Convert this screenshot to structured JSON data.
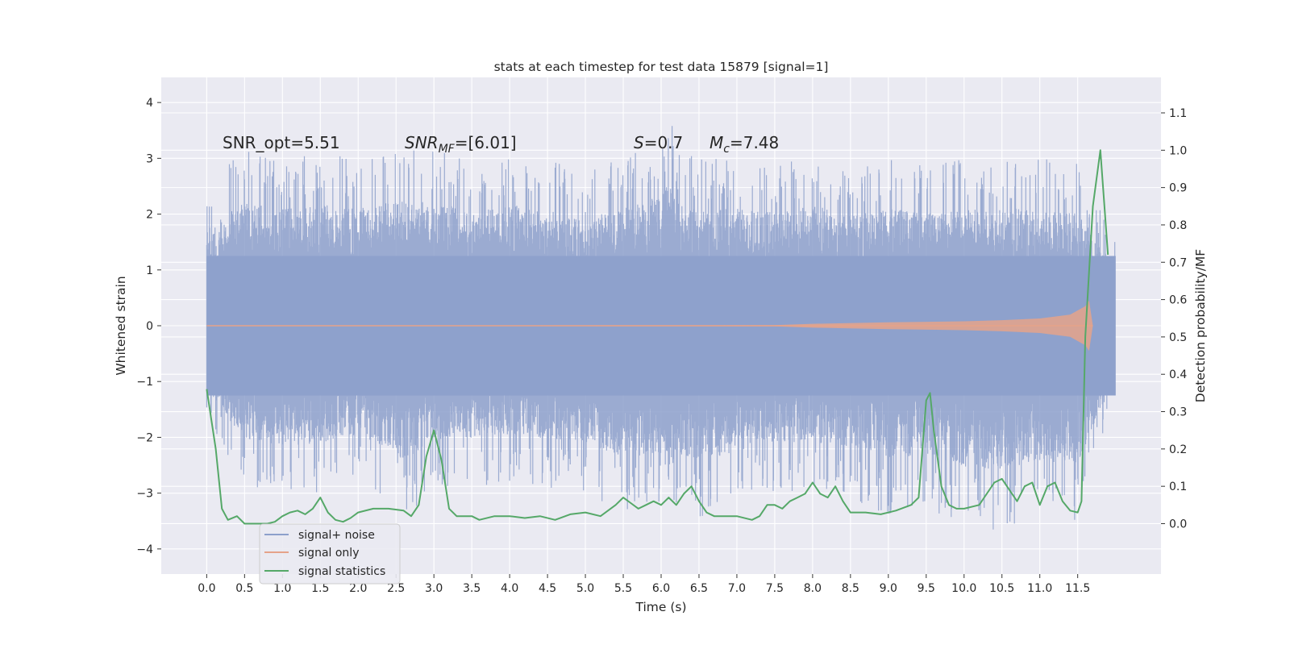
{
  "chart_data": {
    "type": "line",
    "title": "stats at each timestep for test data 15879 [signal=1]",
    "xlabel": "Time (s)",
    "ylabel_left": "Whitened strain",
    "ylabel_right": "Detection probability/MF",
    "xlim": [
      -0.6,
      12.6
    ],
    "ylim_left": [
      -4.45,
      4.45
    ],
    "ylim_right": [
      -0.135,
      1.195
    ],
    "x_ticks": [
      "0.0",
      "0.5",
      "1.0",
      "1.5",
      "2.0",
      "2.5",
      "3.0",
      "3.5",
      "4.0",
      "4.5",
      "5.0",
      "5.5",
      "6.0",
      "6.5",
      "7.0",
      "7.5",
      "8.0",
      "8.5",
      "9.0",
      "9.5",
      "10.0",
      "10.5",
      "11.0",
      "11.5"
    ],
    "y_ticks_left": [
      "4",
      "3",
      "2",
      "1",
      "0",
      "−1",
      "−2",
      "−3",
      "−4"
    ],
    "y_ticks_right": [
      "1.1",
      "1.0",
      "0.9",
      "0.8",
      "0.7",
      "0.6",
      "0.5",
      "0.4",
      "0.3",
      "0.2",
      "0.1",
      "0.0"
    ],
    "grid": true,
    "annotations": {
      "snr_opt": "SNR_opt=5.51",
      "snr_mf_main": "SNR",
      "snr_mf_sub": "MF",
      "snr_mf_rest": "=[6.01]",
      "s_symbol": "S",
      "s_value": "=0.7",
      "mc_symbol": "M",
      "mc_sub": "c",
      "mc_value": "=7.48"
    },
    "legend": {
      "placement": "lower-left",
      "items": [
        {
          "label": "signal+ noise",
          "color": "#8da0cb"
        },
        {
          "label": "signal only",
          "color": "#e5a38a"
        },
        {
          "label": "signal statistics",
          "color": "#55a868"
        }
      ]
    },
    "series": [
      {
        "name": "signal+ noise",
        "color": "#8da0cb",
        "x_range": [
          0.0,
          12.0
        ],
        "envelope_upper": [
          [
            0.0,
            2.5
          ],
          [
            0.5,
            3.2
          ],
          [
            1.0,
            3.0
          ],
          [
            1.5,
            3.1
          ],
          [
            2.0,
            3.0
          ],
          [
            2.5,
            3.2
          ],
          [
            3.0,
            3.2
          ],
          [
            3.5,
            2.9
          ],
          [
            4.0,
            3.1
          ],
          [
            4.5,
            3.0
          ],
          [
            5.0,
            2.7
          ],
          [
            5.5,
            3.1
          ],
          [
            6.0,
            3.3
          ],
          [
            6.1,
            4.05
          ],
          [
            6.2,
            3.2
          ],
          [
            6.5,
            3.0
          ],
          [
            7.0,
            3.0
          ],
          [
            7.5,
            2.9
          ],
          [
            8.0,
            3.1
          ],
          [
            8.5,
            2.8
          ],
          [
            9.0,
            3.0
          ],
          [
            9.5,
            2.9
          ],
          [
            10.0,
            3.0
          ],
          [
            10.5,
            3.0
          ],
          [
            11.0,
            3.0
          ],
          [
            11.5,
            2.9
          ],
          [
            12.0,
            1.5
          ]
        ],
        "envelope_lower": [
          [
            0.0,
            -1.7
          ],
          [
            0.5,
            -2.9
          ],
          [
            1.0,
            -3.1
          ],
          [
            1.5,
            -3.0
          ],
          [
            2.0,
            -2.8
          ],
          [
            2.5,
            -3.2
          ],
          [
            2.6,
            -3.5
          ],
          [
            3.0,
            -2.9
          ],
          [
            3.5,
            -2.9
          ],
          [
            4.0,
            -2.8
          ],
          [
            4.5,
            -2.9
          ],
          [
            5.0,
            -3.0
          ],
          [
            5.5,
            -3.4
          ],
          [
            6.0,
            -3.3
          ],
          [
            6.1,
            -4.05
          ],
          [
            6.2,
            -3.3
          ],
          [
            6.5,
            -3.5
          ],
          [
            7.0,
            -3.2
          ],
          [
            7.5,
            -3.0
          ],
          [
            8.0,
            -3.0
          ],
          [
            8.5,
            -3.1
          ],
          [
            9.0,
            -3.4
          ],
          [
            9.5,
            -3.3
          ],
          [
            10.0,
            -3.6
          ],
          [
            10.5,
            -3.7
          ],
          [
            11.0,
            -3.5
          ],
          [
            11.5,
            -3.5
          ],
          [
            12.0,
            -1.3
          ]
        ]
      },
      {
        "name": "signal only",
        "color": "#e5a38a",
        "envelope": [
          [
            0.0,
            0.005
          ],
          [
            7.5,
            0.01
          ],
          [
            8.0,
            0.035
          ],
          [
            9.0,
            0.06
          ],
          [
            10.0,
            0.08
          ],
          [
            10.5,
            0.1
          ],
          [
            11.0,
            0.13
          ],
          [
            11.4,
            0.2
          ],
          [
            11.6,
            0.35
          ],
          [
            11.65,
            0.45
          ],
          [
            11.7,
            0.0
          ]
        ]
      },
      {
        "name": "signal statistics",
        "color": "#55a868",
        "x": [
          0.0,
          0.12,
          0.2,
          0.28,
          0.4,
          0.5,
          0.6,
          0.7,
          0.8,
          0.9,
          1.0,
          1.1,
          1.2,
          1.3,
          1.4,
          1.5,
          1.6,
          1.7,
          1.8,
          1.9,
          2.0,
          2.2,
          2.4,
          2.6,
          2.7,
          2.8,
          2.9,
          3.0,
          3.1,
          3.2,
          3.3,
          3.4,
          3.5,
          3.6,
          3.8,
          4.0,
          4.2,
          4.4,
          4.6,
          4.8,
          5.0,
          5.2,
          5.4,
          5.5,
          5.6,
          5.7,
          5.8,
          5.9,
          6.0,
          6.1,
          6.2,
          6.3,
          6.4,
          6.5,
          6.6,
          6.7,
          6.8,
          7.0,
          7.2,
          7.3,
          7.4,
          7.5,
          7.6,
          7.7,
          7.8,
          7.9,
          8.0,
          8.1,
          8.2,
          8.3,
          8.4,
          8.5,
          8.7,
          8.9,
          9.1,
          9.3,
          9.4,
          9.5,
          9.55,
          9.6,
          9.7,
          9.8,
          9.9,
          10.0,
          10.2,
          10.4,
          10.5,
          10.6,
          10.7,
          10.8,
          10.9,
          11.0,
          11.1,
          11.2,
          11.3,
          11.4,
          11.5,
          11.55,
          11.6,
          11.7,
          11.8,
          11.9
        ],
        "y": [
          0.36,
          0.2,
          0.04,
          0.01,
          0.02,
          0.0,
          0.0,
          0.0,
          0.0,
          0.005,
          0.02,
          0.03,
          0.035,
          0.025,
          0.04,
          0.07,
          0.03,
          0.01,
          0.005,
          0.015,
          0.03,
          0.04,
          0.04,
          0.035,
          0.02,
          0.05,
          0.18,
          0.25,
          0.17,
          0.04,
          0.02,
          0.02,
          0.02,
          0.01,
          0.02,
          0.02,
          0.015,
          0.02,
          0.01,
          0.025,
          0.03,
          0.02,
          0.05,
          0.07,
          0.055,
          0.04,
          0.05,
          0.06,
          0.05,
          0.07,
          0.05,
          0.08,
          0.1,
          0.06,
          0.03,
          0.02,
          0.02,
          0.02,
          0.01,
          0.02,
          0.05,
          0.05,
          0.04,
          0.06,
          0.07,
          0.08,
          0.11,
          0.08,
          0.07,
          0.1,
          0.06,
          0.03,
          0.03,
          0.025,
          0.035,
          0.05,
          0.07,
          0.33,
          0.35,
          0.25,
          0.1,
          0.05,
          0.04,
          0.04,
          0.05,
          0.11,
          0.12,
          0.09,
          0.06,
          0.1,
          0.11,
          0.05,
          0.1,
          0.11,
          0.06,
          0.035,
          0.03,
          0.06,
          0.5,
          0.85,
          1.0,
          0.72
        ]
      }
    ]
  }
}
